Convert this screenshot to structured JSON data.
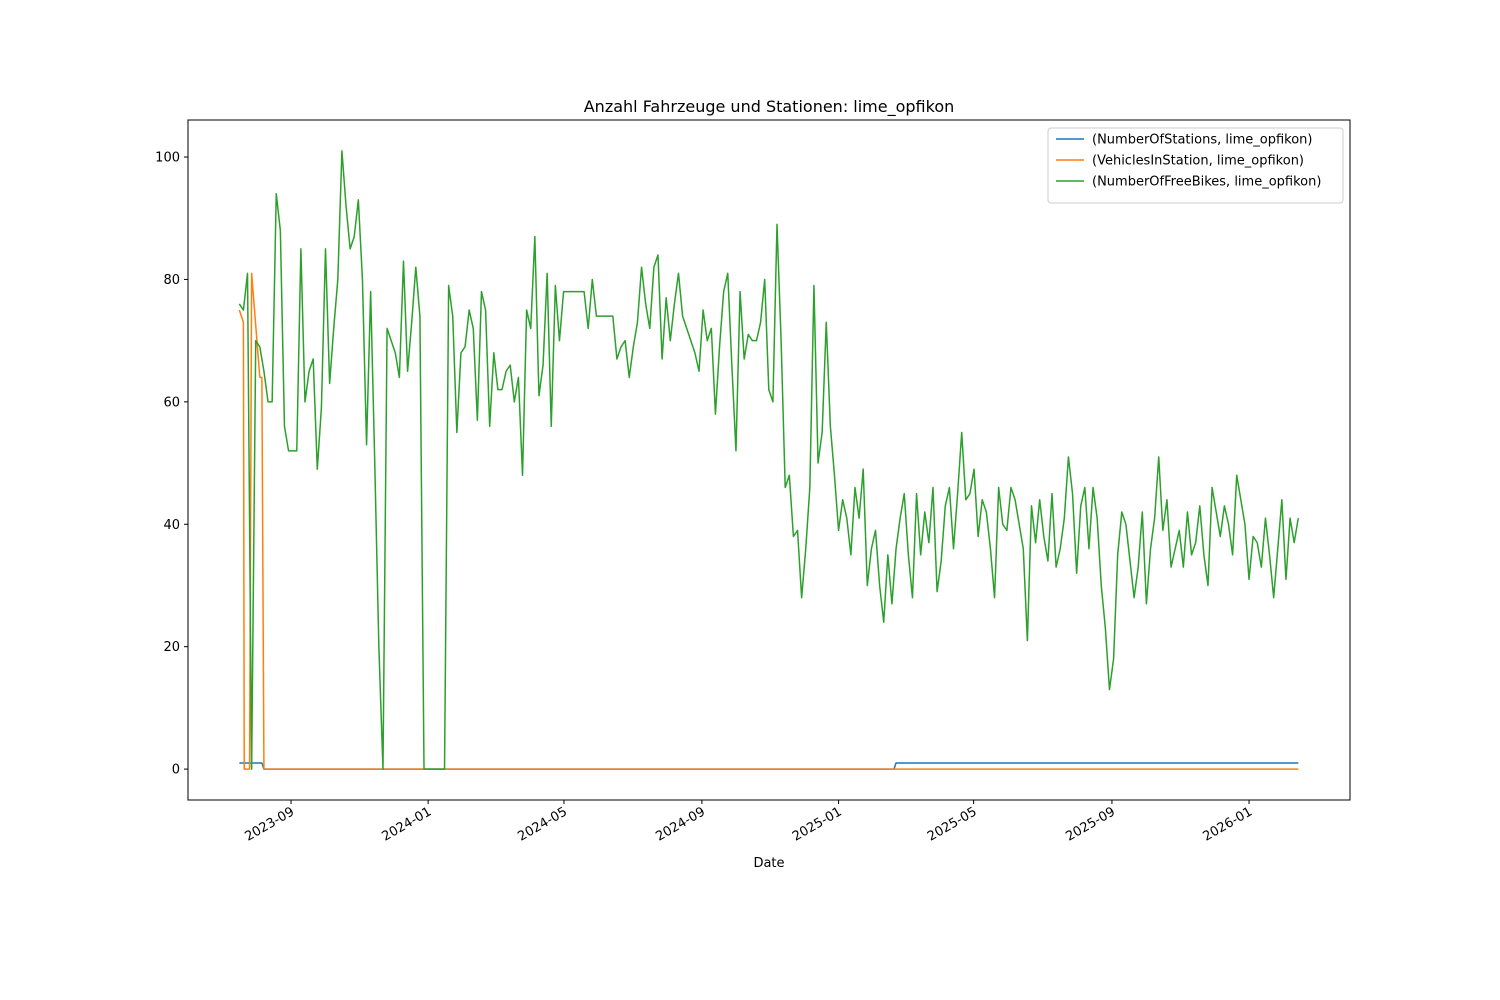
{
  "chart_data": {
    "type": "line",
    "title": "Anzahl Fahrzeuge und Stationen: lime_opfikon",
    "x_label": "Date",
    "xlim": [
      2023.415,
      2026.246
    ],
    "xticks": [
      {
        "value": 2023.666,
        "label": "2023-09"
      },
      {
        "value": 2024.0,
        "label": "2024-01"
      },
      {
        "value": 2024.331,
        "label": "2024-05"
      },
      {
        "value": 2024.667,
        "label": "2024-09"
      },
      {
        "value": 2025.0,
        "label": "2025-01"
      },
      {
        "value": 2025.329,
        "label": "2025-05"
      },
      {
        "value": 2025.666,
        "label": "2025-09"
      },
      {
        "value": 2026.0,
        "label": "2026-01"
      }
    ],
    "ylim": [
      -5.05,
      106.05
    ],
    "yticks": [
      0,
      20,
      40,
      60,
      80,
      100
    ],
    "legend": "upper right",
    "series": [
      {
        "name": "(NumberOfStations, lime_opfikon)",
        "color": "#1f77b4",
        "x": [
          2023.54,
          2023.595,
          2023.6,
          2025.135,
          2025.14,
          2026.12
        ],
        "values": [
          1,
          1,
          0,
          0,
          1,
          1
        ]
      },
      {
        "name": "(VehiclesInStation, lime_opfikon)",
        "color": "#ff7f0e",
        "x": [
          2023.54,
          2023.55,
          2023.552,
          2023.565,
          2023.57,
          2023.59,
          2023.595,
          2023.6,
          2026.12
        ],
        "values": [
          75,
          73,
          0,
          0,
          81,
          64,
          64,
          0,
          0
        ]
      },
      {
        "name": "(NumberOfFreeBikes, lime_opfikon)",
        "color": "#2ca02c",
        "x": [
          2023.54,
          2023.55,
          2023.56,
          2023.57,
          2023.58,
          2023.59,
          2023.6,
          2023.61,
          2023.62,
          2023.63,
          2023.64,
          2023.65,
          2023.66,
          2023.67,
          2023.68,
          2023.69,
          2023.7,
          2023.71,
          2023.72,
          2023.73,
          2023.74,
          2023.75,
          2023.76,
          2023.77,
          2023.78,
          2023.79,
          2023.8,
          2023.81,
          2023.82,
          2023.83,
          2023.84,
          2023.85,
          2023.86,
          2023.87,
          2023.88,
          2023.89,
          2023.9,
          2023.91,
          2023.92,
          2023.93,
          2023.94,
          2023.95,
          2023.96,
          2023.97,
          2023.98,
          2023.99,
          2024,
          2024.01,
          2024.02,
          2024.03,
          2024.04,
          2024.05,
          2024.06,
          2024.07,
          2024.08,
          2024.09,
          2024.1,
          2024.11,
          2024.12,
          2024.13,
          2024.14,
          2024.15,
          2024.16,
          2024.17,
          2024.18,
          2024.19,
          2024.2,
          2024.21,
          2024.22,
          2024.23,
          2024.24,
          2024.25,
          2024.26,
          2024.27,
          2024.28,
          2024.29,
          2024.3,
          2024.31,
          2024.32,
          2024.33,
          2024.34,
          2024.35,
          2024.36,
          2024.37,
          2024.38,
          2024.39,
          2024.4,
          2024.41,
          2024.42,
          2024.43,
          2024.44,
          2024.45,
          2024.46,
          2024.47,
          2024.48,
          2024.49,
          2024.5,
          2024.51,
          2024.52,
          2024.53,
          2024.54,
          2024.55,
          2024.56,
          2024.57,
          2024.58,
          2024.59,
          2024.6,
          2024.61,
          2024.62,
          2024.63,
          2024.64,
          2024.65,
          2024.66,
          2024.67,
          2024.68,
          2024.69,
          2024.7,
          2024.71,
          2024.72,
          2024.73,
          2024.74,
          2024.75,
          2024.76,
          2024.77,
          2024.78,
          2024.79,
          2024.8,
          2024.81,
          2024.82,
          2024.83,
          2024.84,
          2024.85,
          2024.86,
          2024.87,
          2024.88,
          2024.89,
          2024.9,
          2024.91,
          2024.92,
          2024.93,
          2024.94,
          2024.95,
          2024.96,
          2024.97,
          2024.98,
          2024.99,
          2025,
          2025.01,
          2025.02,
          2025.03,
          2025.04,
          2025.05,
          2025.06,
          2025.07,
          2025.08,
          2025.09,
          2025.1,
          2025.11,
          2025.12,
          2025.13,
          2025.14,
          2025.15,
          2025.16,
          2025.17,
          2025.18,
          2025.19,
          2025.2,
          2025.21,
          2025.22,
          2025.23,
          2025.24,
          2025.25,
          2025.26,
          2025.27,
          2025.28,
          2025.29,
          2025.3,
          2025.31,
          2025.32,
          2025.33,
          2025.34,
          2025.35,
          2025.36,
          2025.37,
          2025.38,
          2025.39,
          2025.4,
          2025.41,
          2025.42,
          2025.43,
          2025.44,
          2025.45,
          2025.46,
          2025.47,
          2025.48,
          2025.49,
          2025.5,
          2025.51,
          2025.52,
          2025.53,
          2025.54,
          2025.55,
          2025.56,
          2025.57,
          2025.58,
          2025.59,
          2025.6,
          2025.61,
          2025.62,
          2025.63,
          2025.64,
          2025.65,
          2025.66,
          2025.67,
          2025.68,
          2025.69,
          2025.7,
          2025.71,
          2025.72,
          2025.73,
          2025.74,
          2025.75,
          2025.76,
          2025.77,
          2025.78,
          2025.79,
          2025.8,
          2025.81,
          2025.82,
          2025.83,
          2025.84,
          2025.85,
          2025.86,
          2025.87,
          2025.88,
          2025.89,
          2025.9,
          2025.91,
          2025.92,
          2025.93,
          2025.94,
          2025.95,
          2025.96,
          2025.97,
          2025.98,
          2025.99,
          2026,
          2026.01,
          2026.02,
          2026.03,
          2026.04,
          2026.05,
          2026.06,
          2026.07,
          2026.08,
          2026.09,
          2026.1,
          2026.11,
          2026.12
        ],
        "values": [
          76,
          75,
          81,
          0,
          70,
          69,
          65,
          60,
          60,
          94,
          88,
          56,
          52,
          52,
          52,
          85,
          60,
          65,
          67,
          49,
          59,
          85,
          63,
          72,
          80,
          101,
          92,
          85,
          87,
          93,
          80,
          53,
          78,
          50,
          20,
          0,
          72,
          70,
          68,
          64,
          83,
          65,
          73,
          82,
          74,
          0,
          0,
          0,
          0,
          0,
          0,
          79,
          74,
          55,
          68,
          69,
          75,
          72,
          57,
          78,
          75,
          56,
          68,
          62,
          62,
          65,
          66,
          60,
          64,
          48,
          75,
          72,
          87,
          61,
          66,
          81,
          56,
          79,
          70,
          78,
          78,
          78,
          78,
          78,
          78,
          72,
          80,
          74,
          74,
          74,
          74,
          74,
          67,
          69,
          70,
          64,
          69,
          73,
          82,
          76,
          72,
          82,
          84,
          67,
          77,
          70,
          76,
          81,
          74,
          72,
          70,
          68,
          65,
          75,
          70,
          72,
          58,
          69,
          78,
          81,
          66,
          52,
          78,
          67,
          71,
          70,
          70,
          73,
          80,
          62,
          60,
          89,
          70,
          46,
          48,
          38,
          39,
          28,
          36,
          46,
          79,
          50,
          55,
          73,
          56,
          48,
          39,
          44,
          41,
          35,
          46,
          41,
          49,
          30,
          36,
          39,
          30,
          24,
          35,
          27,
          36,
          41,
          45,
          35,
          28,
          45,
          35,
          42,
          37,
          46,
          29,
          34,
          43,
          46,
          36,
          45,
          55,
          44,
          45,
          49,
          38,
          44,
          42,
          36,
          28,
          46,
          40,
          39,
          46,
          44,
          40,
          36,
          21,
          43,
          37,
          44,
          38,
          34,
          45,
          33,
          36,
          41,
          51,
          45,
          32,
          43,
          46,
          36,
          46,
          41,
          30,
          23,
          13,
          18,
          35,
          42,
          40,
          34,
          28,
          33,
          42,
          27,
          36,
          41,
          51,
          39,
          44,
          33,
          36,
          39,
          33,
          42,
          35,
          37,
          43,
          35,
          30,
          46,
          42,
          38,
          43,
          40,
          35,
          48,
          44,
          40,
          31,
          38,
          37,
          33,
          41,
          35,
          28,
          36,
          44,
          31,
          41,
          37,
          41
        ]
      }
    ]
  }
}
